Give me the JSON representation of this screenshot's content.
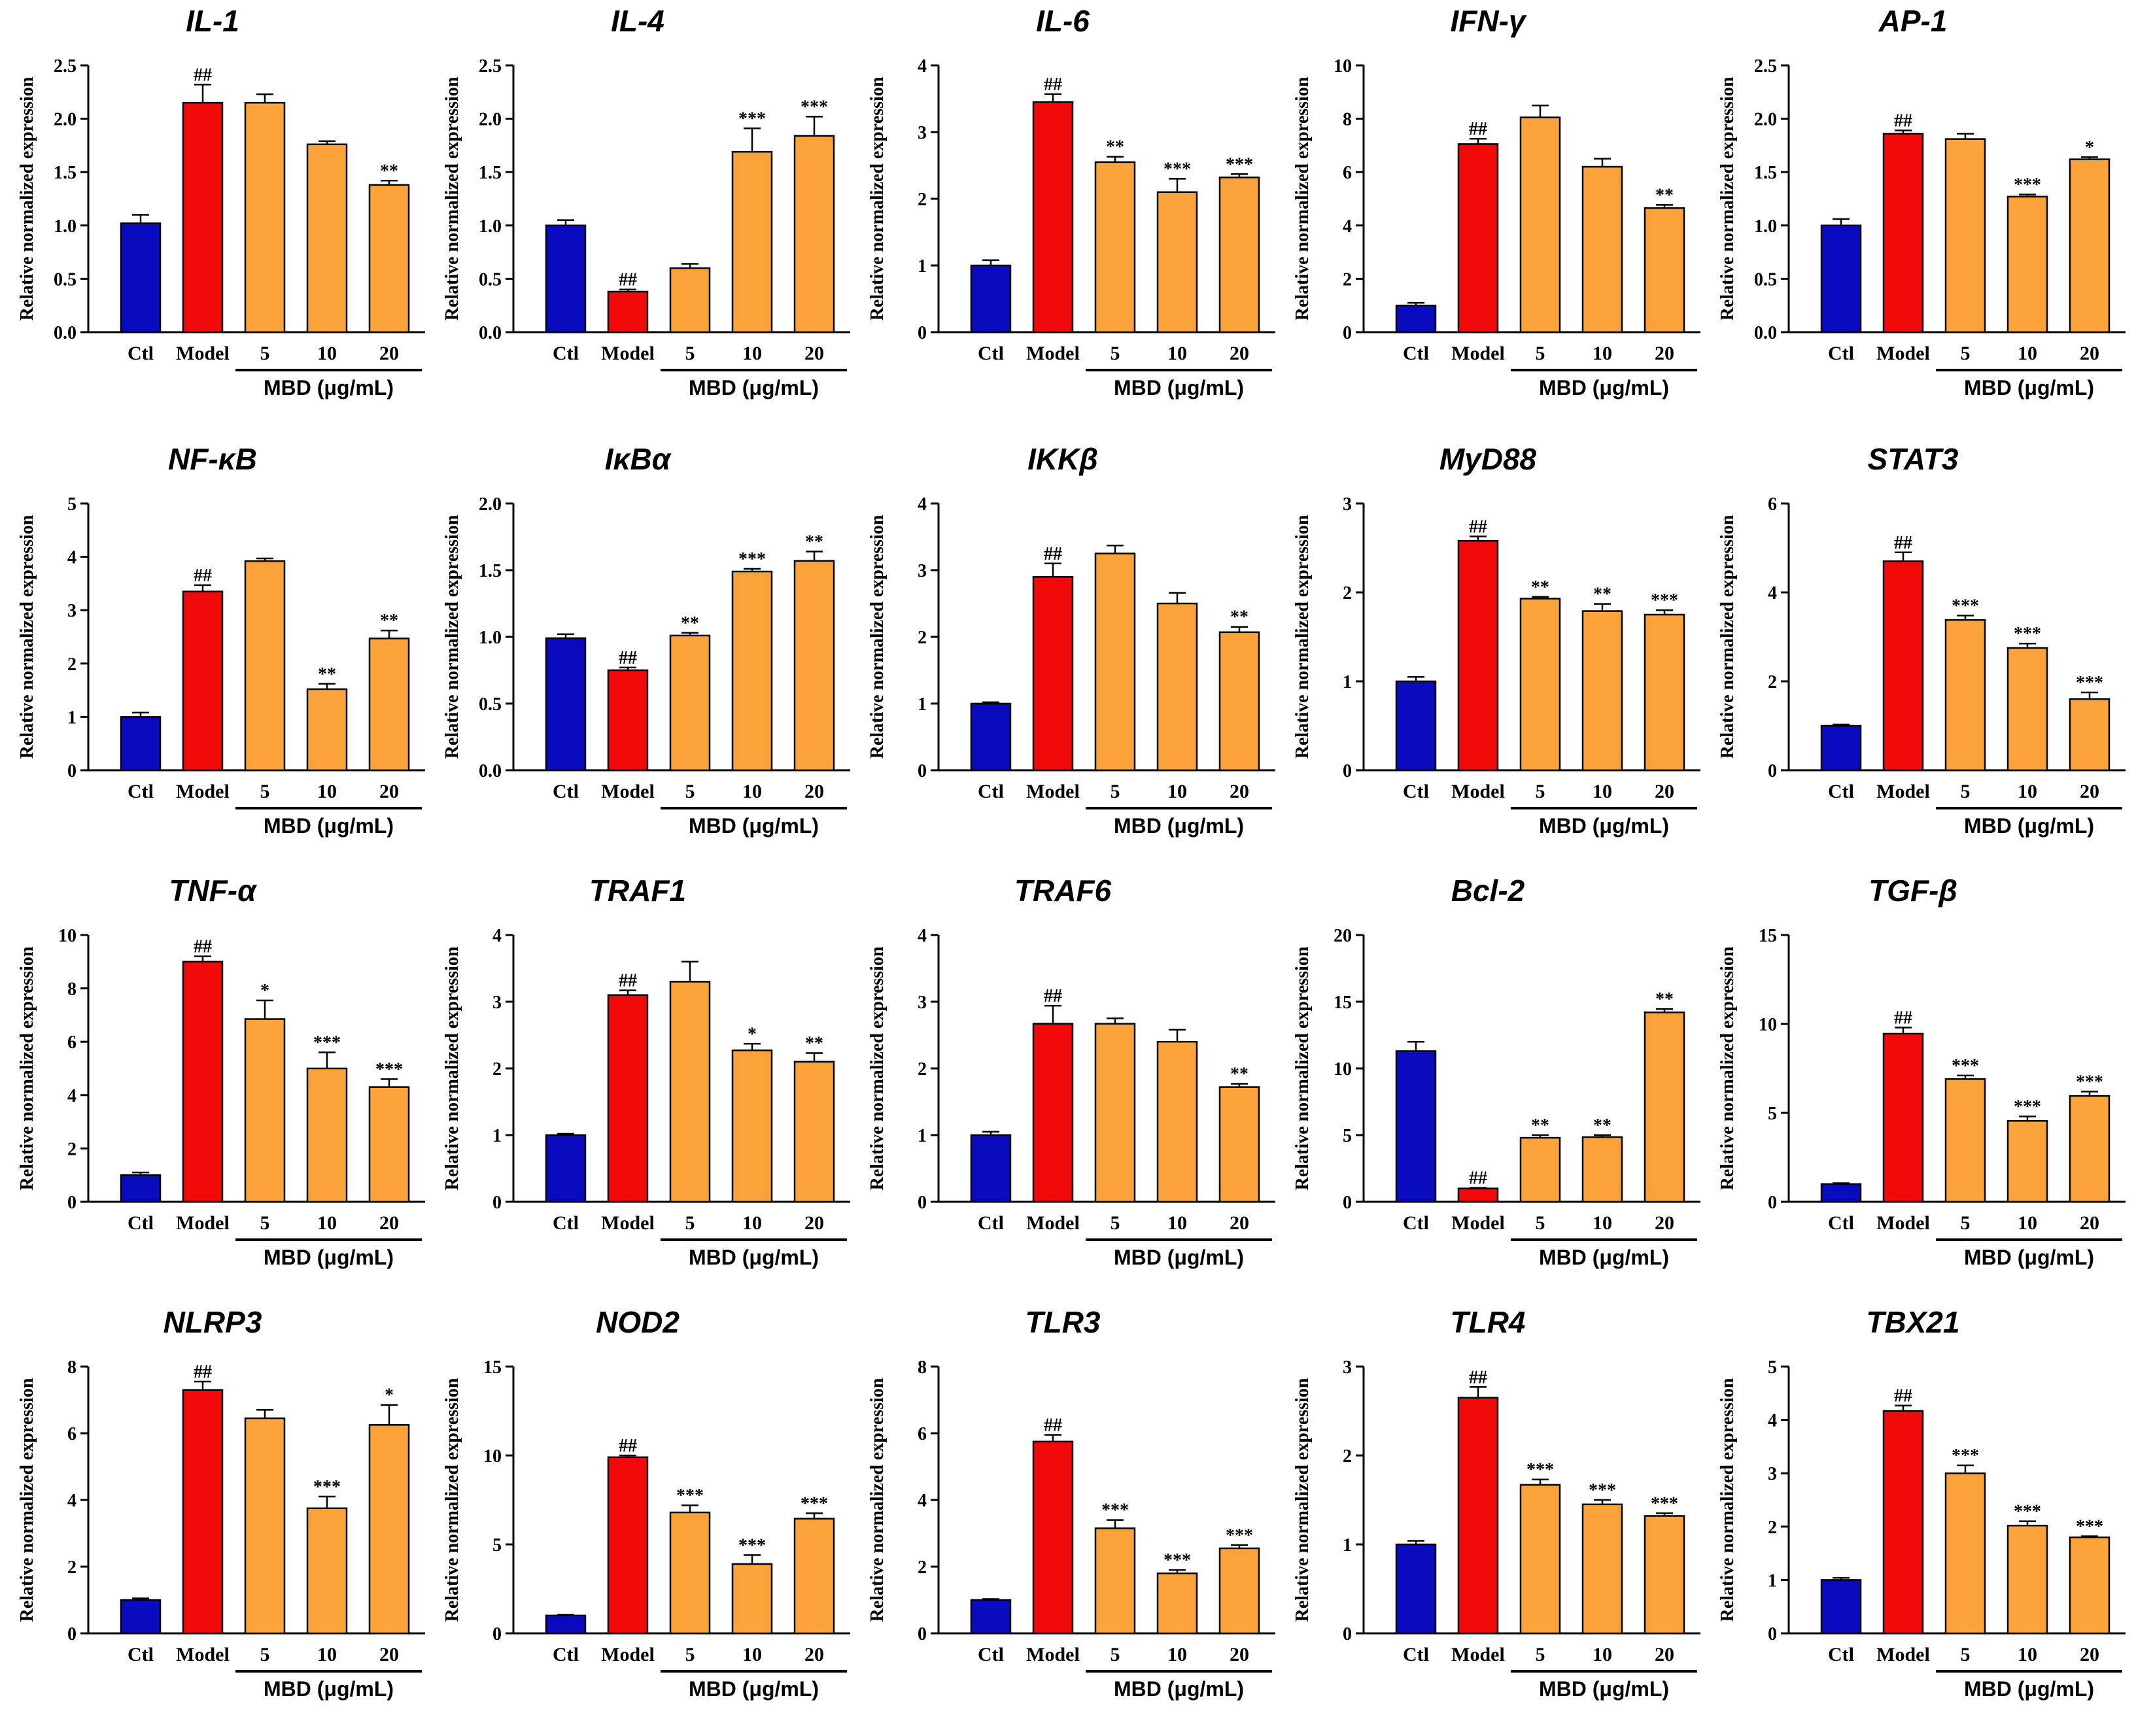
{
  "figure": {
    "colors": {
      "ctl": "#0A0ABF",
      "model": "#F20A0A",
      "mbd": "#FBA23A"
    }
  },
  "chart_data": [
    {
      "type": "bar",
      "title": "IL-1",
      "ylabel": "Relative normalized expression",
      "group_label": "MBD (μg/mL)",
      "categories": [
        "Ctl",
        "Model",
        "5",
        "10",
        "20"
      ],
      "values": [
        1.02,
        2.15,
        2.15,
        1.76,
        1.38
      ],
      "errors": [
        0.08,
        0.17,
        0.08,
        0.03,
        0.04
      ],
      "sig": [
        "",
        "##",
        "",
        "",
        "**"
      ],
      "ylim": [
        0,
        2.5
      ],
      "yticks": [
        "0.0",
        "0.5",
        "1.0",
        "1.5",
        "2.0",
        "2.5"
      ]
    },
    {
      "type": "bar",
      "title": "IL-4",
      "ylabel": "Relative normalized expression",
      "group_label": "MBD (μg/mL)",
      "categories": [
        "Ctl",
        "Model",
        "5",
        "10",
        "20"
      ],
      "values": [
        1.0,
        0.38,
        0.6,
        1.69,
        1.84
      ],
      "errors": [
        0.05,
        0.02,
        0.04,
        0.22,
        0.18
      ],
      "sig": [
        "",
        "##",
        "",
        "***",
        "***"
      ],
      "ylim": [
        0,
        2.5
      ],
      "yticks": [
        "0.0",
        "0.5",
        "1.0",
        "1.5",
        "2.0",
        "2.5"
      ]
    },
    {
      "type": "bar",
      "title": "IL-6",
      "ylabel": "Relative normalized expression",
      "group_label": "MBD (μg/mL)",
      "categories": [
        "Ctl",
        "Model",
        "5",
        "10",
        "20"
      ],
      "values": [
        1.0,
        3.45,
        2.55,
        2.1,
        2.32
      ],
      "errors": [
        0.08,
        0.12,
        0.08,
        0.2,
        0.05
      ],
      "sig": [
        "",
        "##",
        "**",
        "***",
        "***"
      ],
      "ylim": [
        0,
        4
      ],
      "yticks": [
        "0",
        "1",
        "2",
        "3",
        "4"
      ]
    },
    {
      "type": "bar",
      "title": "IFN-γ",
      "ylabel": "Relative normalized expression",
      "group_label": "MBD (μg/mL)",
      "categories": [
        "Ctl",
        "Model",
        "5",
        "10",
        "20"
      ],
      "values": [
        1.0,
        7.05,
        8.05,
        6.2,
        4.65
      ],
      "errors": [
        0.1,
        0.2,
        0.45,
        0.3,
        0.12
      ],
      "sig": [
        "",
        "##",
        "",
        "",
        "**"
      ],
      "ylim": [
        0,
        10
      ],
      "yticks": [
        "0",
        "2",
        "4",
        "6",
        "8",
        "10"
      ]
    },
    {
      "type": "bar",
      "title": "AP-1",
      "ylabel": "Relative normalized expression",
      "group_label": "MBD (μg/mL)",
      "categories": [
        "Ctl",
        "Model",
        "5",
        "10",
        "20"
      ],
      "values": [
        1.0,
        1.86,
        1.81,
        1.27,
        1.62
      ],
      "errors": [
        0.06,
        0.03,
        0.05,
        0.02,
        0.02
      ],
      "sig": [
        "",
        "##",
        "",
        "***",
        "*"
      ],
      "ylim": [
        0,
        2.5
      ],
      "yticks": [
        "0.0",
        "0.5",
        "1.0",
        "1.5",
        "2.0",
        "2.5"
      ]
    },
    {
      "type": "bar",
      "title": "NF-κB",
      "ylabel": "Relative normalized expression",
      "group_label": "MBD (μg/mL)",
      "categories": [
        "Ctl",
        "Model",
        "5",
        "10",
        "20"
      ],
      "values": [
        1.0,
        3.35,
        3.92,
        1.52,
        2.47
      ],
      "errors": [
        0.08,
        0.12,
        0.05,
        0.1,
        0.15
      ],
      "sig": [
        "",
        "##",
        "",
        "**",
        "**"
      ],
      "ylim": [
        0,
        5
      ],
      "yticks": [
        "0",
        "1",
        "2",
        "3",
        "4",
        "5"
      ]
    },
    {
      "type": "bar",
      "title": "IκBα",
      "ylabel": "Relative normalized expression",
      "group_label": "MBD (μg/mL)",
      "categories": [
        "Ctl",
        "Model",
        "5",
        "10",
        "20"
      ],
      "values": [
        0.99,
        0.75,
        1.01,
        1.49,
        1.57
      ],
      "errors": [
        0.03,
        0.02,
        0.02,
        0.02,
        0.07
      ],
      "sig": [
        "",
        "##",
        "**",
        "***",
        "**"
      ],
      "ylim": [
        0,
        2.0
      ],
      "yticks": [
        "0.0",
        "0.5",
        "1.0",
        "1.5",
        "2.0"
      ]
    },
    {
      "type": "bar",
      "title": "IKKβ",
      "ylabel": "Relative normalized expression",
      "group_label": "MBD (μg/mL)",
      "categories": [
        "Ctl",
        "Model",
        "5",
        "10",
        "20"
      ],
      "values": [
        1.0,
        2.9,
        3.25,
        2.5,
        2.07
      ],
      "errors": [
        0.02,
        0.2,
        0.12,
        0.16,
        0.08
      ],
      "sig": [
        "",
        "##",
        "",
        "",
        "**"
      ],
      "ylim": [
        0,
        4
      ],
      "yticks": [
        "0",
        "1",
        "2",
        "3",
        "4"
      ]
    },
    {
      "type": "bar",
      "title": "MyD88",
      "ylabel": "Relative normalized expression",
      "group_label": "MBD (μg/mL)",
      "categories": [
        "Ctl",
        "Model",
        "5",
        "10",
        "20"
      ],
      "values": [
        1.0,
        2.58,
        1.93,
        1.79,
        1.75
      ],
      "errors": [
        0.05,
        0.05,
        0.02,
        0.08,
        0.05
      ],
      "sig": [
        "",
        "##",
        "**",
        "**",
        "***"
      ],
      "ylim": [
        0,
        3
      ],
      "yticks": [
        "0",
        "1",
        "2",
        "3"
      ]
    },
    {
      "type": "bar",
      "title": "STAT3",
      "ylabel": "Relative normalized expression",
      "group_label": "MBD (μg/mL)",
      "categories": [
        "Ctl",
        "Model",
        "5",
        "10",
        "20"
      ],
      "values": [
        1.0,
        4.7,
        3.38,
        2.75,
        1.6
      ],
      "errors": [
        0.03,
        0.2,
        0.1,
        0.1,
        0.15
      ],
      "sig": [
        "",
        "##",
        "***",
        "***",
        "***"
      ],
      "ylim": [
        0,
        6
      ],
      "yticks": [
        "0",
        "2",
        "4",
        "6"
      ]
    },
    {
      "type": "bar",
      "title": "TNF-α",
      "ylabel": "Relative normalized expression",
      "group_label": "MBD (μg/mL)",
      "categories": [
        "Ctl",
        "Model",
        "5",
        "10",
        "20"
      ],
      "values": [
        1.0,
        9.0,
        6.85,
        5.0,
        4.3
      ],
      "errors": [
        0.1,
        0.2,
        0.7,
        0.6,
        0.3
      ],
      "sig": [
        "",
        "##",
        "*",
        "***",
        "***"
      ],
      "ylim": [
        0,
        10
      ],
      "yticks": [
        "0",
        "2",
        "4",
        "6",
        "8",
        "10"
      ]
    },
    {
      "type": "bar",
      "title": "TRAF1",
      "ylabel": "Relative normalized expression",
      "group_label": "MBD (μg/mL)",
      "categories": [
        "Ctl",
        "Model",
        "5",
        "10",
        "20"
      ],
      "values": [
        1.0,
        3.1,
        3.3,
        2.27,
        2.1
      ],
      "errors": [
        0.02,
        0.07,
        0.3,
        0.1,
        0.13
      ],
      "sig": [
        "",
        "##",
        "",
        "*",
        "**"
      ],
      "ylim": [
        0,
        4
      ],
      "yticks": [
        "0",
        "1",
        "2",
        "3",
        "4"
      ]
    },
    {
      "type": "bar",
      "title": "TRAF6",
      "ylabel": "Relative normalized expression",
      "group_label": "MBD (μg/mL)",
      "categories": [
        "Ctl",
        "Model",
        "5",
        "10",
        "20"
      ],
      "values": [
        1.0,
        2.67,
        2.67,
        2.4,
        1.72
      ],
      "errors": [
        0.05,
        0.27,
        0.08,
        0.18,
        0.05
      ],
      "sig": [
        "",
        "##",
        "",
        "",
        "**"
      ],
      "ylim": [
        0,
        4
      ],
      "yticks": [
        "0",
        "1",
        "2",
        "3",
        "4"
      ]
    },
    {
      "type": "bar",
      "title": "Bcl-2",
      "ylabel": "Relative normalized expression",
      "group_label": "MBD (μg/mL)",
      "categories": [
        "Ctl",
        "Model",
        "5",
        "10",
        "20"
      ],
      "values": [
        11.3,
        1.0,
        4.8,
        4.85,
        14.2
      ],
      "errors": [
        0.7,
        0.05,
        0.2,
        0.15,
        0.25
      ],
      "sig": [
        "",
        "##",
        "**",
        "**",
        "**"
      ],
      "ylim": [
        0,
        20
      ],
      "yticks": [
        "0",
        "5",
        "10",
        "15",
        "20"
      ]
    },
    {
      "type": "bar",
      "title": "TGF-β",
      "ylabel": "Relative normalized expression",
      "group_label": "MBD (μg/mL)",
      "categories": [
        "Ctl",
        "Model",
        "5",
        "10",
        "20"
      ],
      "values": [
        1.0,
        9.45,
        6.9,
        4.55,
        5.95
      ],
      "errors": [
        0.05,
        0.35,
        0.2,
        0.25,
        0.25
      ],
      "sig": [
        "",
        "##",
        "***",
        "***",
        "***"
      ],
      "ylim": [
        0,
        15
      ],
      "yticks": [
        "0",
        "5",
        "10",
        "15"
      ]
    },
    {
      "type": "bar",
      "title": "NLRP3",
      "ylabel": "Relative normalized expression",
      "group_label": "MBD (μg/mL)",
      "categories": [
        "Ctl",
        "Model",
        "5",
        "10",
        "20"
      ],
      "values": [
        1.0,
        7.3,
        6.45,
        3.75,
        6.25
      ],
      "errors": [
        0.05,
        0.25,
        0.25,
        0.35,
        0.6
      ],
      "sig": [
        "",
        "##",
        "",
        "***",
        "*"
      ],
      "ylim": [
        0,
        8
      ],
      "yticks": [
        "0",
        "2",
        "4",
        "6",
        "8"
      ]
    },
    {
      "type": "bar",
      "title": "NOD2",
      "ylabel": "Relative normalized expression",
      "group_label": "MBD (μg/mL)",
      "categories": [
        "Ctl",
        "Model",
        "5",
        "10",
        "20"
      ],
      "values": [
        1.0,
        9.9,
        6.8,
        3.9,
        6.45
      ],
      "errors": [
        0.05,
        0.1,
        0.4,
        0.5,
        0.3
      ],
      "sig": [
        "",
        "##",
        "***",
        "***",
        "***"
      ],
      "ylim": [
        0,
        15
      ],
      "yticks": [
        "0",
        "5",
        "10",
        "15"
      ]
    },
    {
      "type": "bar",
      "title": "TLR3",
      "ylabel": "Relative normalized expression",
      "group_label": "MBD (μg/mL)",
      "categories": [
        "Ctl",
        "Model",
        "5",
        "10",
        "20"
      ],
      "values": [
        1.0,
        5.75,
        3.15,
        1.8,
        2.55
      ],
      "errors": [
        0.03,
        0.2,
        0.25,
        0.1,
        0.1
      ],
      "sig": [
        "",
        "##",
        "***",
        "***",
        "***"
      ],
      "ylim": [
        0,
        8
      ],
      "yticks": [
        "0",
        "2",
        "4",
        "6",
        "8"
      ]
    },
    {
      "type": "bar",
      "title": "TLR4",
      "ylabel": "Relative normalized expression",
      "group_label": "MBD (μg/mL)",
      "categories": [
        "Ctl",
        "Model",
        "5",
        "10",
        "20"
      ],
      "values": [
        1.0,
        2.65,
        1.67,
        1.45,
        1.32
      ],
      "errors": [
        0.04,
        0.12,
        0.06,
        0.05,
        0.03
      ],
      "sig": [
        "",
        "##",
        "***",
        "***",
        "***"
      ],
      "ylim": [
        0,
        3
      ],
      "yticks": [
        "0",
        "1",
        "2",
        "3"
      ]
    },
    {
      "type": "bar",
      "title": "TBX21",
      "ylabel": "Relative normalized expression",
      "group_label": "MBD (μg/mL)",
      "categories": [
        "Ctl",
        "Model",
        "5",
        "10",
        "20"
      ],
      "values": [
        1.0,
        4.17,
        3.0,
        2.02,
        1.8
      ],
      "errors": [
        0.04,
        0.1,
        0.15,
        0.08,
        0.02
      ],
      "sig": [
        "",
        "##",
        "***",
        "***",
        "***"
      ],
      "ylim": [
        0,
        5
      ],
      "yticks": [
        "0",
        "1",
        "2",
        "3",
        "4",
        "5"
      ]
    }
  ]
}
